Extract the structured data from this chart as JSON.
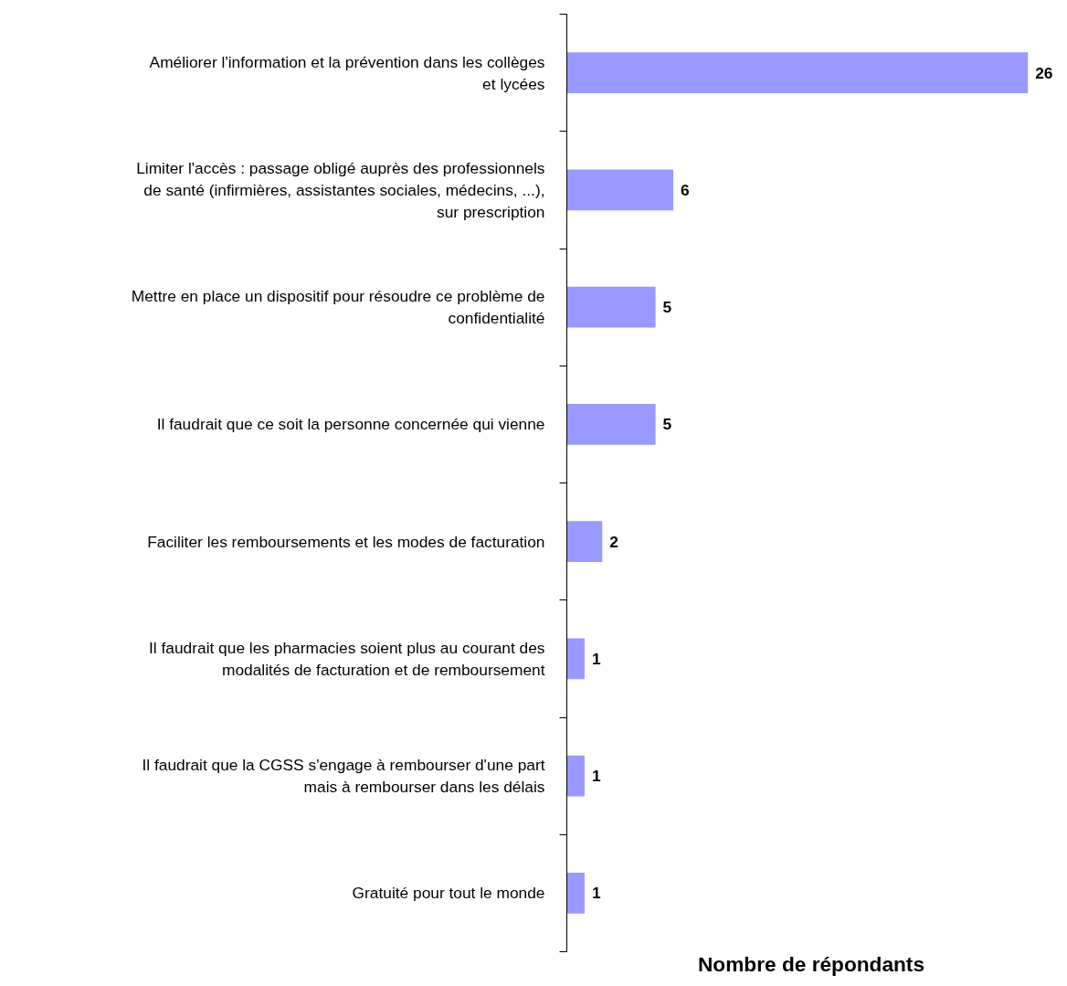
{
  "chart_data": {
    "type": "bar",
    "orientation": "horizontal",
    "xlabel": "Nombre de répondants",
    "categories": [
      "Améliorer l'information et la prévention dans les collèges et lycées",
      "Limiter l'accès : passage obligé auprès des professionnels de santé (infirmières, assistantes sociales, médecins, ...), sur prescription",
      "Mettre en place un dispositif pour résoudre ce problème de confidentialité",
      "Il faudrait que ce soit la personne concernée qui vienne",
      "Faciliter les remboursements et les modes de facturation",
      "Il faudrait que les pharmacies soient plus au courant des modalités de facturation et de remboursement",
      "Il faudrait que la CGSS s'engage à rembourser d'une part mais à rembourser dans les délais",
      "Gratuité pour tout le monde"
    ],
    "values": [
      26,
      6,
      5,
      5,
      2,
      1,
      1,
      1
    ],
    "color": "#9999ff",
    "data_labels": true,
    "grid": false
  }
}
